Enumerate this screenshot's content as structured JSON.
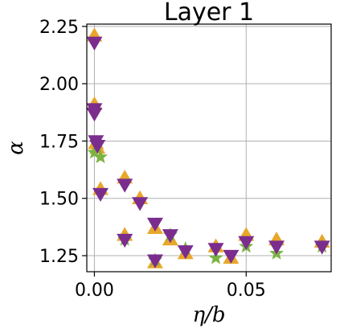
{
  "chart_data": {
    "type": "scatter",
    "title": "Layer 1",
    "xlabel": "η/b",
    "ylabel": "α",
    "xlim": [
      -0.0025,
      0.078
    ],
    "ylim": [
      1.18,
      2.26
    ],
    "grid": true,
    "x_ticks": [
      {
        "value": 0.0,
        "label": "0.00"
      },
      {
        "value": 0.05,
        "label": "0.05"
      }
    ],
    "y_ticks": [
      {
        "value": 1.25,
        "label": "1.25"
      },
      {
        "value": 1.5,
        "label": "1.50"
      },
      {
        "value": 1.75,
        "label": "1.75"
      },
      {
        "value": 2.0,
        "label": "2.00"
      },
      {
        "value": 2.25,
        "label": "2.25"
      }
    ],
    "colors": {
      "orange": "#e8a72a",
      "green": "#7cb342",
      "purple": "#7b2d8e"
    },
    "series": [
      {
        "marker": "triangle-up",
        "color": "#e8a72a",
        "points": [
          [
            0.0,
            2.21
          ],
          [
            0.0,
            1.91
          ],
          [
            0.0005,
            1.74
          ],
          [
            0.001,
            1.72
          ],
          [
            0.002,
            1.54
          ],
          [
            0.01,
            1.59
          ],
          [
            0.01,
            1.34
          ],
          [
            0.015,
            1.5
          ],
          [
            0.02,
            1.37
          ],
          [
            0.02,
            1.22
          ],
          [
            0.025,
            1.32
          ],
          [
            0.03,
            1.26
          ],
          [
            0.04,
            1.29
          ],
          [
            0.045,
            1.24
          ],
          [
            0.05,
            1.34
          ],
          [
            0.06,
            1.32
          ],
          [
            0.075,
            1.31
          ]
        ]
      },
      {
        "marker": "star",
        "color": "#7cb342",
        "points": [
          [
            0.0,
            1.7
          ],
          [
            0.002,
            1.68
          ],
          [
            0.01,
            1.32
          ],
          [
            0.02,
            1.23
          ],
          [
            0.025,
            1.34
          ],
          [
            0.03,
            1.28
          ],
          [
            0.04,
            1.24
          ],
          [
            0.05,
            1.29
          ],
          [
            0.06,
            1.26
          ],
          [
            0.075,
            1.29
          ]
        ]
      },
      {
        "marker": "triangle-down",
        "color": "#7b2d8e",
        "points": [
          [
            0.0,
            2.18
          ],
          [
            0.0,
            1.89
          ],
          [
            0.0,
            1.87
          ],
          [
            0.0005,
            1.75
          ],
          [
            0.001,
            1.73
          ],
          [
            0.002,
            1.52
          ],
          [
            0.01,
            1.56
          ],
          [
            0.01,
            1.32
          ],
          [
            0.015,
            1.48
          ],
          [
            0.02,
            1.39
          ],
          [
            0.02,
            1.23
          ],
          [
            0.025,
            1.34
          ],
          [
            0.03,
            1.27
          ],
          [
            0.04,
            1.28
          ],
          [
            0.045,
            1.25
          ],
          [
            0.05,
            1.31
          ],
          [
            0.06,
            1.29
          ],
          [
            0.075,
            1.29
          ]
        ]
      }
    ]
  }
}
